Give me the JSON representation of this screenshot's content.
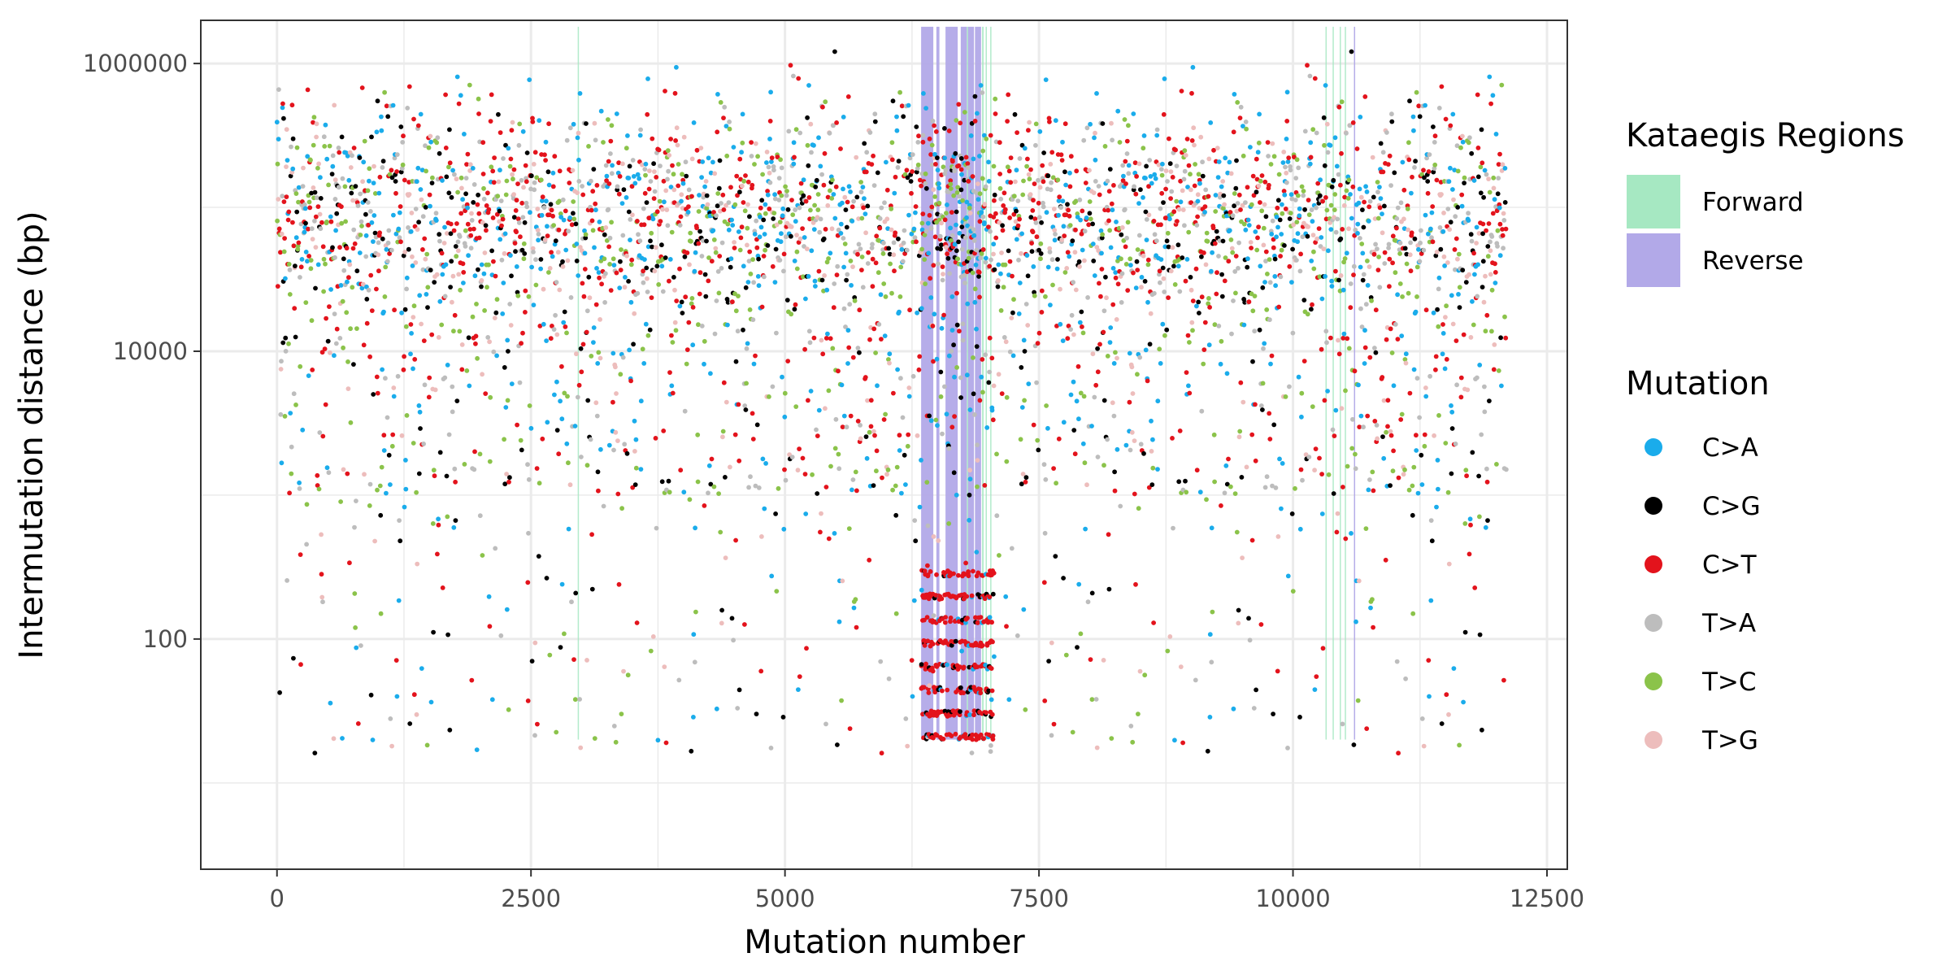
{
  "chart_data": {
    "type": "scatter",
    "title": "",
    "xlabel": "Mutation number",
    "ylabel": "Intermutation distance (bp)",
    "x_range": [
      -750,
      12700
    ],
    "y_range_log10": [
      0.4,
      6.3
    ],
    "y_scale": "log10",
    "x_ticks": [
      0,
      2500,
      5000,
      7500,
      10000,
      12500
    ],
    "x_tick_labels": [
      "0",
      "2500",
      "5000",
      "7500",
      "10000",
      "12500"
    ],
    "y_ticks": [
      100,
      10000,
      1000000
    ],
    "y_tick_labels": [
      "100",
      "10000",
      "1000000"
    ],
    "grid": true,
    "legend_position": "right",
    "region_legend_title": "Kataegis Regions",
    "regions_legend": [
      {
        "name": "Forward",
        "color": "#A6E8C2"
      },
      {
        "name": "Reverse",
        "color": "#B2A9E8"
      }
    ],
    "mutation_legend_title": "Mutation",
    "series": [
      {
        "name": "C>A",
        "color": "#1AACEB"
      },
      {
        "name": "C>G",
        "color": "#000000"
      },
      {
        "name": "C>T",
        "color": "#E3131C"
      },
      {
        "name": "T>A",
        "color": "#BDBDBD"
      },
      {
        "name": "T>C",
        "color": "#8BC34A"
      },
      {
        "name": "T>G",
        "color": "#EDBDBC"
      }
    ],
    "total_mutations": 12100,
    "kataegis_regions": [
      {
        "type": "Forward",
        "start": 2960,
        "end": 2970
      },
      {
        "type": "Reverse",
        "start": 6340,
        "end": 6460
      },
      {
        "type": "Reverse",
        "start": 6490,
        "end": 6520
      },
      {
        "type": "Reverse",
        "start": 6580,
        "end": 6700
      },
      {
        "type": "Reverse",
        "start": 6730,
        "end": 6790
      },
      {
        "type": "Reverse",
        "start": 6800,
        "end": 6860
      },
      {
        "type": "Forward",
        "start": 6790,
        "end": 6800
      },
      {
        "type": "Reverse",
        "start": 6870,
        "end": 6930
      },
      {
        "type": "Forward",
        "start": 6940,
        "end": 6955
      },
      {
        "type": "Forward",
        "start": 6975,
        "end": 6985
      },
      {
        "type": "Forward",
        "start": 7020,
        "end": 7030
      },
      {
        "type": "Forward",
        "start": 10320,
        "end": 10330
      },
      {
        "type": "Forward",
        "start": 10390,
        "end": 10400
      },
      {
        "type": "Forward",
        "start": 10460,
        "end": 10470
      },
      {
        "type": "Forward",
        "start": 10510,
        "end": 10520
      },
      {
        "type": "Reverse",
        "start": 10600,
        "end": 10610
      }
    ],
    "kataegis_region_y_range": [
      20,
      1800000
    ],
    "density_description": {
      "main_band_log10": [
        4.0,
        5.9
      ],
      "kataegis_cluster_x": [
        6340,
        7060
      ],
      "kataegis_cluster_log10": [
        1.3,
        2.6
      ]
    }
  }
}
